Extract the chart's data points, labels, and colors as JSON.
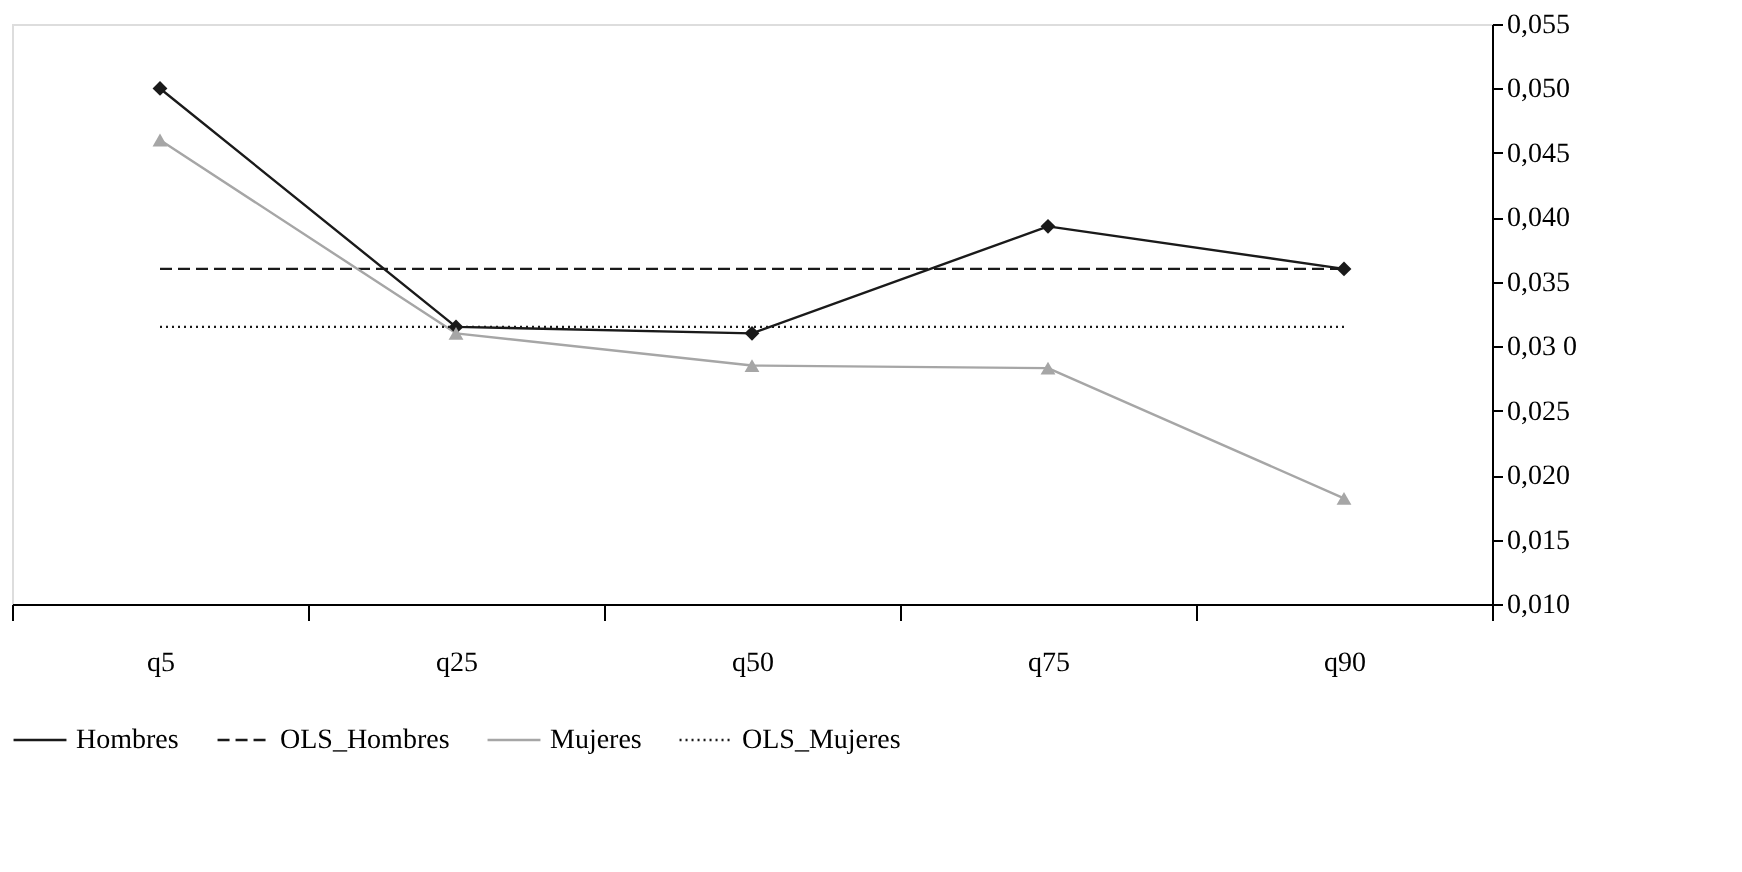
{
  "chart_data": {
    "type": "line",
    "categories": [
      "q5",
      "q25",
      "q50",
      "q75",
      "q90"
    ],
    "series": [
      {
        "name": "Hombres",
        "color": "#1a1a1a",
        "marker": "diamond",
        "line_style": "solid",
        "values": [
          0.05,
          0.0315,
          0.031,
          0.0393,
          0.036
        ]
      },
      {
        "name": "OLS_Hombres",
        "color": "#1a1a1a",
        "marker": "none",
        "line_style": "dashed",
        "values": [
          0.036,
          0.036,
          0.036,
          0.036,
          0.036
        ]
      },
      {
        "name": "Mujeres",
        "color": "#a6a6a6",
        "marker": "triangle",
        "line_style": "solid",
        "values": [
          0.046,
          0.031,
          0.0285,
          0.0283,
          0.0182
        ]
      },
      {
        "name": "OLS_Mujeres",
        "color": "#1a1a1a",
        "marker": "none",
        "line_style": "dotted",
        "values": [
          0.0315,
          0.0315,
          0.0315,
          0.0315,
          0.0315
        ]
      }
    ],
    "ylim": [
      0.01,
      0.055
    ],
    "yticks": [
      {
        "value": 0.01,
        "label": "0,010"
      },
      {
        "value": 0.015,
        "label": "0,015"
      },
      {
        "value": 0.02,
        "label": "0,020"
      },
      {
        "value": 0.025,
        "label": "0,025"
      },
      {
        "value": 0.03,
        "label": "0,03 0"
      },
      {
        "value": 0.035,
        "label": "0,035"
      },
      {
        "value": 0.04,
        "label": "0,040"
      },
      {
        "value": 0.045,
        "label": "0,045"
      },
      {
        "value": 0.05,
        "label": "0,050"
      },
      {
        "value": 0.055,
        "label": "0,055"
      }
    ],
    "grid": false,
    "legend": "bottom"
  }
}
